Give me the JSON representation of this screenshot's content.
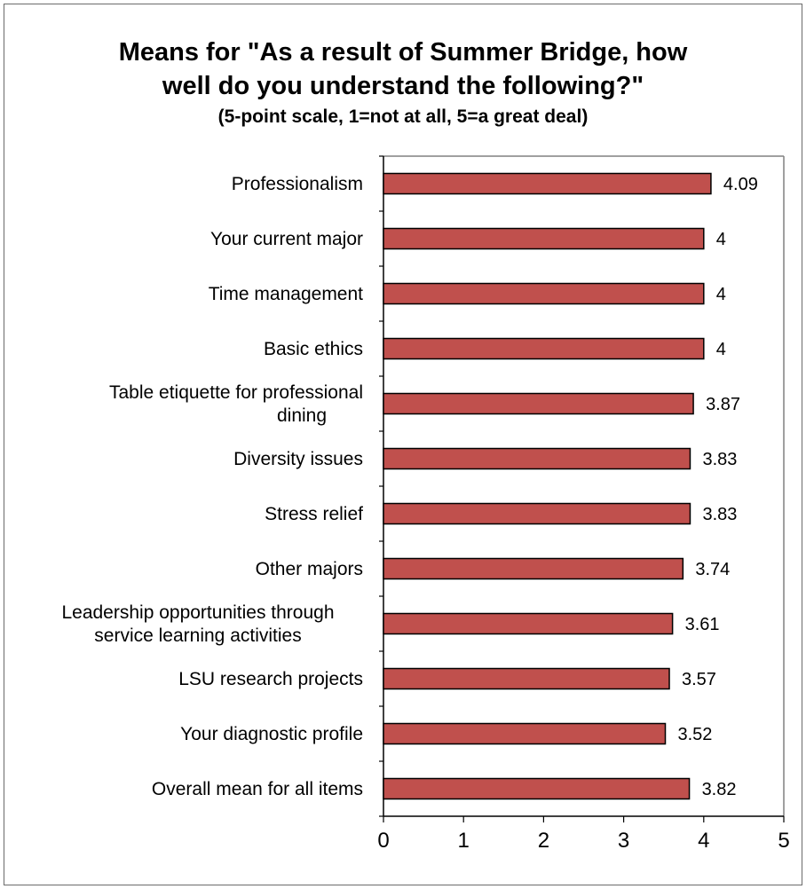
{
  "chart_data": {
    "type": "bar",
    "orientation": "horizontal",
    "title": "Means for \"As a result of Summer Bridge, how well do you understand the following?\"",
    "title_lines": [
      "Means for \"As a result of Summer Bridge, how",
      "well do you understand the following?\""
    ],
    "subtitle": "(5-point scale, 1=not at all, 5=a great deal)",
    "categories": [
      [
        "Professionalism"
      ],
      [
        "Your current major"
      ],
      [
        "Time management"
      ],
      [
        "Basic ethics"
      ],
      [
        "Table etiquette for professional",
        "dining"
      ],
      [
        "Diversity issues"
      ],
      [
        "Stress relief"
      ],
      [
        "Other majors"
      ],
      [
        "Leadership opportunities through",
        "service learning activities"
      ],
      [
        "LSU research projects"
      ],
      [
        "Your diagnostic profile"
      ],
      [
        "Overall mean for all items"
      ]
    ],
    "values": [
      4.09,
      4,
      4,
      4,
      3.87,
      3.83,
      3.83,
      3.74,
      3.61,
      3.57,
      3.52,
      3.82
    ],
    "value_labels": [
      "4.09",
      "4",
      "4",
      "4",
      "3.87",
      "3.83",
      "3.83",
      "3.74",
      "3.61",
      "3.57",
      "3.52",
      "3.82"
    ],
    "xlim": [
      0,
      5
    ],
    "xticks": [
      "0",
      "1",
      "2",
      "3",
      "4",
      "5"
    ],
    "xlabel": "",
    "ylabel": "",
    "grid": false,
    "legend": "none",
    "colors": {
      "bar_fill": "#C0504D",
      "bar_stroke": "#000000",
      "axis": "#000000",
      "frame": "#6b6b6b"
    }
  }
}
